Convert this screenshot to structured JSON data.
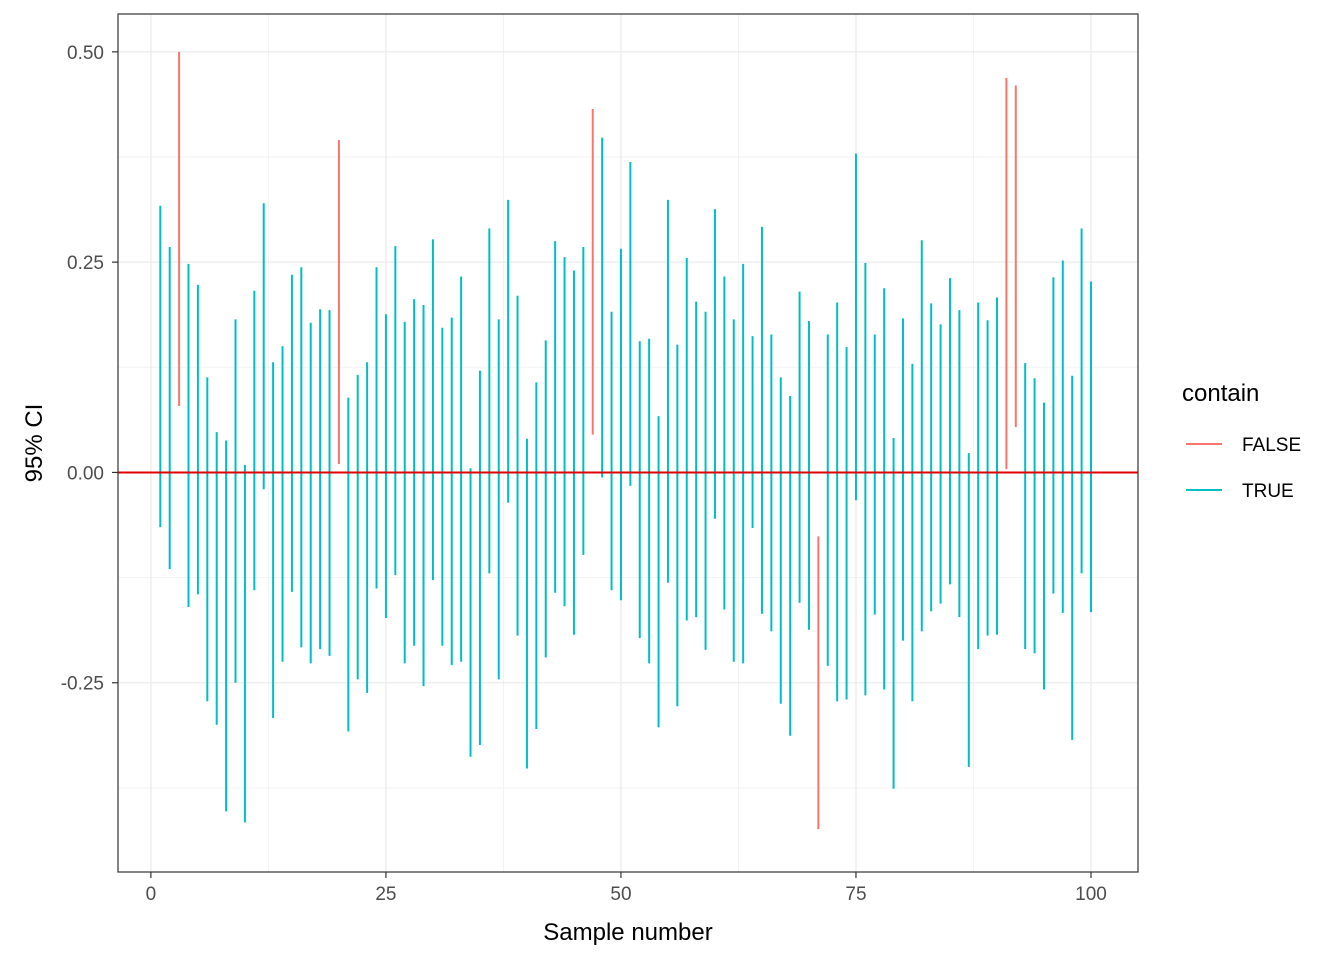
{
  "chart_data": {
    "type": "errorbar",
    "title": "",
    "xlabel": "Sample number",
    "ylabel": "95% CI",
    "xlim": [
      -3.5,
      105
    ],
    "ylim": [
      -0.475,
      0.545
    ],
    "x_ticks": [
      0,
      25,
      50,
      75,
      100
    ],
    "x_tick_labels": [
      "0",
      "25",
      "50",
      "75",
      "100"
    ],
    "y_ticks": [
      0.5,
      0.25,
      0.0,
      -0.25
    ],
    "y_tick_labels": [
      "0.50",
      "0.25",
      "0.00",
      "-0.25"
    ],
    "grid": true,
    "reference_line": {
      "y": 0,
      "color": "#e00000"
    },
    "legend": {
      "title": "contain",
      "position": "right",
      "entries": [
        {
          "label": "FALSE",
          "color": "#F8766D"
        },
        {
          "label": "TRUE",
          "color": "#00BFC4"
        }
      ]
    },
    "intervals": [
      {
        "x": 1,
        "lower": -0.065,
        "upper": 0.317,
        "contain": true
      },
      {
        "x": 2,
        "lower": -0.115,
        "upper": 0.268,
        "contain": true
      },
      {
        "x": 3,
        "lower": 0.079,
        "upper": 0.5,
        "contain": false
      },
      {
        "x": 4,
        "lower": -0.16,
        "upper": 0.248,
        "contain": true
      },
      {
        "x": 5,
        "lower": -0.145,
        "upper": 0.223,
        "contain": true
      },
      {
        "x": 6,
        "lower": -0.272,
        "upper": 0.113,
        "contain": true
      },
      {
        "x": 7,
        "lower": -0.3,
        "upper": 0.048,
        "contain": true
      },
      {
        "x": 8,
        "lower": -0.403,
        "upper": 0.038,
        "contain": true
      },
      {
        "x": 9,
        "lower": -0.25,
        "upper": 0.182,
        "contain": true
      },
      {
        "x": 10,
        "lower": -0.416,
        "upper": 0.009,
        "contain": true
      },
      {
        "x": 11,
        "lower": -0.14,
        "upper": 0.216,
        "contain": true
      },
      {
        "x": 12,
        "lower": -0.02,
        "upper": 0.32,
        "contain": true
      },
      {
        "x": 13,
        "lower": -0.292,
        "upper": 0.131,
        "contain": true
      },
      {
        "x": 14,
        "lower": -0.225,
        "upper": 0.15,
        "contain": true
      },
      {
        "x": 15,
        "lower": -0.142,
        "upper": 0.235,
        "contain": true
      },
      {
        "x": 16,
        "lower": -0.208,
        "upper": 0.244,
        "contain": true
      },
      {
        "x": 17,
        "lower": -0.227,
        "upper": 0.178,
        "contain": true
      },
      {
        "x": 18,
        "lower": -0.21,
        "upper": 0.194,
        "contain": true
      },
      {
        "x": 19,
        "lower": -0.218,
        "upper": 0.193,
        "contain": true
      },
      {
        "x": 20,
        "lower": 0.01,
        "upper": 0.395,
        "contain": false
      },
      {
        "x": 21,
        "lower": -0.308,
        "upper": 0.089,
        "contain": true
      },
      {
        "x": 22,
        "lower": -0.246,
        "upper": 0.116,
        "contain": true
      },
      {
        "x": 23,
        "lower": -0.262,
        "upper": 0.131,
        "contain": true
      },
      {
        "x": 24,
        "lower": -0.138,
        "upper": 0.244,
        "contain": true
      },
      {
        "x": 25,
        "lower": -0.173,
        "upper": 0.188,
        "contain": true
      },
      {
        "x": 26,
        "lower": -0.122,
        "upper": 0.269,
        "contain": true
      },
      {
        "x": 27,
        "lower": -0.227,
        "upper": 0.179,
        "contain": true
      },
      {
        "x": 28,
        "lower": -0.206,
        "upper": 0.206,
        "contain": true
      },
      {
        "x": 29,
        "lower": -0.254,
        "upper": 0.199,
        "contain": true
      },
      {
        "x": 30,
        "lower": -0.128,
        "upper": 0.277,
        "contain": true
      },
      {
        "x": 31,
        "lower": -0.206,
        "upper": 0.172,
        "contain": true
      },
      {
        "x": 32,
        "lower": -0.229,
        "upper": 0.184,
        "contain": true
      },
      {
        "x": 33,
        "lower": -0.225,
        "upper": 0.233,
        "contain": true
      },
      {
        "x": 34,
        "lower": -0.338,
        "upper": 0.005,
        "contain": true
      },
      {
        "x": 35,
        "lower": -0.324,
        "upper": 0.121,
        "contain": true
      },
      {
        "x": 36,
        "lower": -0.12,
        "upper": 0.29,
        "contain": true
      },
      {
        "x": 37,
        "lower": -0.246,
        "upper": 0.182,
        "contain": true
      },
      {
        "x": 38,
        "lower": -0.036,
        "upper": 0.324,
        "contain": true
      },
      {
        "x": 39,
        "lower": -0.194,
        "upper": 0.21,
        "contain": true
      },
      {
        "x": 40,
        "lower": -0.352,
        "upper": 0.04,
        "contain": true
      },
      {
        "x": 41,
        "lower": -0.305,
        "upper": 0.107,
        "contain": true
      },
      {
        "x": 42,
        "lower": -0.22,
        "upper": 0.157,
        "contain": true
      },
      {
        "x": 43,
        "lower": -0.143,
        "upper": 0.275,
        "contain": true
      },
      {
        "x": 44,
        "lower": -0.159,
        "upper": 0.256,
        "contain": true
      },
      {
        "x": 45,
        "lower": -0.193,
        "upper": 0.24,
        "contain": true
      },
      {
        "x": 46,
        "lower": -0.098,
        "upper": 0.268,
        "contain": true
      },
      {
        "x": 47,
        "lower": 0.045,
        "upper": 0.432,
        "contain": false
      },
      {
        "x": 48,
        "lower": -0.006,
        "upper": 0.398,
        "contain": true
      },
      {
        "x": 49,
        "lower": -0.14,
        "upper": 0.191,
        "contain": true
      },
      {
        "x": 50,
        "lower": -0.152,
        "upper": 0.266,
        "contain": true
      },
      {
        "x": 51,
        "lower": -0.016,
        "upper": 0.369,
        "contain": true
      },
      {
        "x": 52,
        "lower": -0.197,
        "upper": 0.156,
        "contain": true
      },
      {
        "x": 53,
        "lower": -0.227,
        "upper": 0.159,
        "contain": true
      },
      {
        "x": 54,
        "lower": -0.303,
        "upper": 0.067,
        "contain": true
      },
      {
        "x": 55,
        "lower": -0.131,
        "upper": 0.324,
        "contain": true
      },
      {
        "x": 56,
        "lower": -0.278,
        "upper": 0.152,
        "contain": true
      },
      {
        "x": 57,
        "lower": -0.176,
        "upper": 0.255,
        "contain": true
      },
      {
        "x": 58,
        "lower": -0.172,
        "upper": 0.203,
        "contain": true
      },
      {
        "x": 59,
        "lower": -0.211,
        "upper": 0.191,
        "contain": true
      },
      {
        "x": 60,
        "lower": -0.055,
        "upper": 0.313,
        "contain": true
      },
      {
        "x": 61,
        "lower": -0.163,
        "upper": 0.233,
        "contain": true
      },
      {
        "x": 62,
        "lower": -0.225,
        "upper": 0.182,
        "contain": true
      },
      {
        "x": 63,
        "lower": -0.227,
        "upper": 0.248,
        "contain": true
      },
      {
        "x": 64,
        "lower": -0.066,
        "upper": 0.162,
        "contain": true
      },
      {
        "x": 65,
        "lower": -0.168,
        "upper": 0.292,
        "contain": true
      },
      {
        "x": 66,
        "lower": -0.189,
        "upper": 0.164,
        "contain": true
      },
      {
        "x": 67,
        "lower": -0.275,
        "upper": 0.113,
        "contain": true
      },
      {
        "x": 68,
        "lower": -0.313,
        "upper": 0.091,
        "contain": true
      },
      {
        "x": 69,
        "lower": -0.155,
        "upper": 0.215,
        "contain": true
      },
      {
        "x": 70,
        "lower": -0.187,
        "upper": 0.18,
        "contain": true
      },
      {
        "x": 71,
        "lower": -0.424,
        "upper": -0.076,
        "contain": false
      },
      {
        "x": 72,
        "lower": -0.23,
        "upper": 0.164,
        "contain": true
      },
      {
        "x": 73,
        "lower": -0.272,
        "upper": 0.202,
        "contain": true
      },
      {
        "x": 74,
        "lower": -0.27,
        "upper": 0.149,
        "contain": true
      },
      {
        "x": 75,
        "lower": -0.033,
        "upper": 0.379,
        "contain": true
      },
      {
        "x": 76,
        "lower": -0.265,
        "upper": 0.249,
        "contain": true
      },
      {
        "x": 77,
        "lower": -0.169,
        "upper": 0.164,
        "contain": true
      },
      {
        "x": 78,
        "lower": -0.258,
        "upper": 0.219,
        "contain": true
      },
      {
        "x": 79,
        "lower": -0.376,
        "upper": 0.041,
        "contain": true
      },
      {
        "x": 80,
        "lower": -0.2,
        "upper": 0.183,
        "contain": true
      },
      {
        "x": 81,
        "lower": -0.272,
        "upper": 0.129,
        "contain": true
      },
      {
        "x": 82,
        "lower": -0.189,
        "upper": 0.276,
        "contain": true
      },
      {
        "x": 83,
        "lower": -0.165,
        "upper": 0.201,
        "contain": true
      },
      {
        "x": 84,
        "lower": -0.156,
        "upper": 0.176,
        "contain": true
      },
      {
        "x": 85,
        "lower": -0.133,
        "upper": 0.231,
        "contain": true
      },
      {
        "x": 86,
        "lower": -0.172,
        "upper": 0.193,
        "contain": true
      },
      {
        "x": 87,
        "lower": -0.35,
        "upper": 0.023,
        "contain": true
      },
      {
        "x": 88,
        "lower": -0.21,
        "upper": 0.202,
        "contain": true
      },
      {
        "x": 89,
        "lower": -0.194,
        "upper": 0.181,
        "contain": true
      },
      {
        "x": 90,
        "lower": -0.193,
        "upper": 0.208,
        "contain": true
      },
      {
        "x": 91,
        "lower": 0.004,
        "upper": 0.469,
        "contain": false
      },
      {
        "x": 92,
        "lower": 0.054,
        "upper": 0.46,
        "contain": false
      },
      {
        "x": 93,
        "lower": -0.21,
        "upper": 0.13,
        "contain": true
      },
      {
        "x": 94,
        "lower": -0.215,
        "upper": 0.112,
        "contain": true
      },
      {
        "x": 95,
        "lower": -0.258,
        "upper": 0.083,
        "contain": true
      },
      {
        "x": 96,
        "lower": -0.144,
        "upper": 0.232,
        "contain": true
      },
      {
        "x": 97,
        "lower": -0.167,
        "upper": 0.252,
        "contain": true
      },
      {
        "x": 98,
        "lower": -0.318,
        "upper": 0.115,
        "contain": true
      },
      {
        "x": 99,
        "lower": -0.12,
        "upper": 0.29,
        "contain": true
      },
      {
        "x": 100,
        "lower": -0.166,
        "upper": 0.227,
        "contain": true
      }
    ]
  }
}
